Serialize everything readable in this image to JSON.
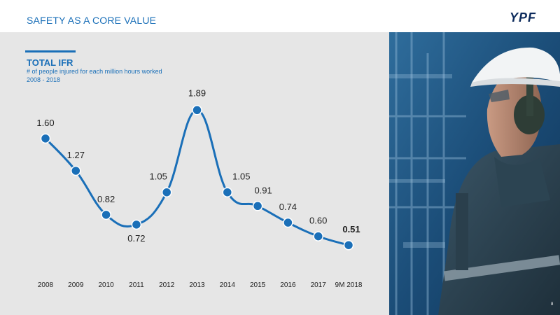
{
  "header": {
    "title": "SAFETY AS A CORE VALUE",
    "logo_text": "YPF"
  },
  "chart_data": {
    "type": "line",
    "title": "TOTAL IFR",
    "subtitle": "# of people injured for each million hours worked",
    "range_label": "2008 - 2018",
    "categories": [
      "2008",
      "2009",
      "2010",
      "2011",
      "2012",
      "2013",
      "2014",
      "2015",
      "2016",
      "2017",
      "9M 2018"
    ],
    "series": [
      {
        "values": [
          1.6,
          1.27,
          0.82,
          0.72,
          1.05,
          1.89,
          1.05,
          0.91,
          0.74,
          0.6,
          0.51
        ],
        "labels": [
          "1.60",
          "1.27",
          "0.82",
          "0.72",
          "1.05",
          "1.89",
          "1.05",
          "0.91",
          "0.74",
          "0.60",
          "0.51"
        ],
        "bold_last_label": true
      }
    ],
    "line_color": "#1a6fb8",
    "smooth": true,
    "grid": false
  },
  "footer": {
    "page_number": "8"
  },
  "colors": {
    "accent": "#1a6fb8",
    "panel_bg": "#e6e6e6",
    "logo": "#0d2b5c"
  }
}
